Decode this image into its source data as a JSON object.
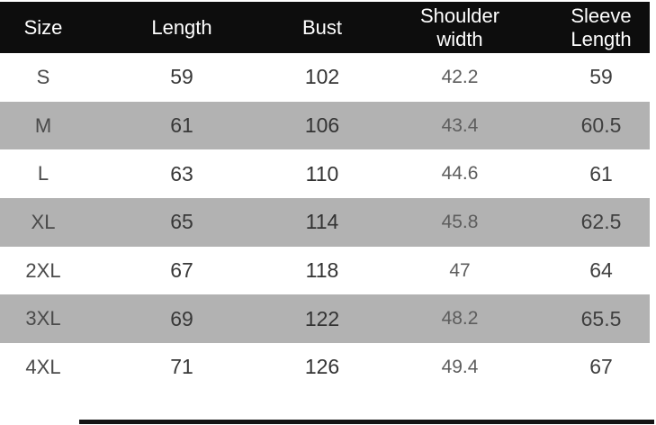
{
  "chart_data": {
    "type": "table",
    "columns": [
      "Size",
      "Length",
      "Bust",
      "Shoulder width",
      "Sleeve Length"
    ],
    "rows": [
      [
        "S",
        "59",
        "102",
        "42.2",
        "59"
      ],
      [
        "M",
        "61",
        "106",
        "43.4",
        "60.5"
      ],
      [
        "L",
        "63",
        "110",
        "44.6",
        "61"
      ],
      [
        "XL",
        "65",
        "114",
        "45.8",
        "62.5"
      ],
      [
        "2XL",
        "67",
        "118",
        "47",
        "64"
      ],
      [
        "3XL",
        "69",
        "122",
        "48.2",
        "65.5"
      ],
      [
        "4XL",
        "71",
        "126",
        "49.4",
        "67"
      ]
    ]
  },
  "colors": {
    "header_bg": "#0d0d0d",
    "header_text": "#ffffff",
    "row_white": "#ffffff",
    "row_alt_gray": "#b2b2b2",
    "cell_text": "#3c3c3c",
    "cell_text_light": "#5d5d5d"
  }
}
